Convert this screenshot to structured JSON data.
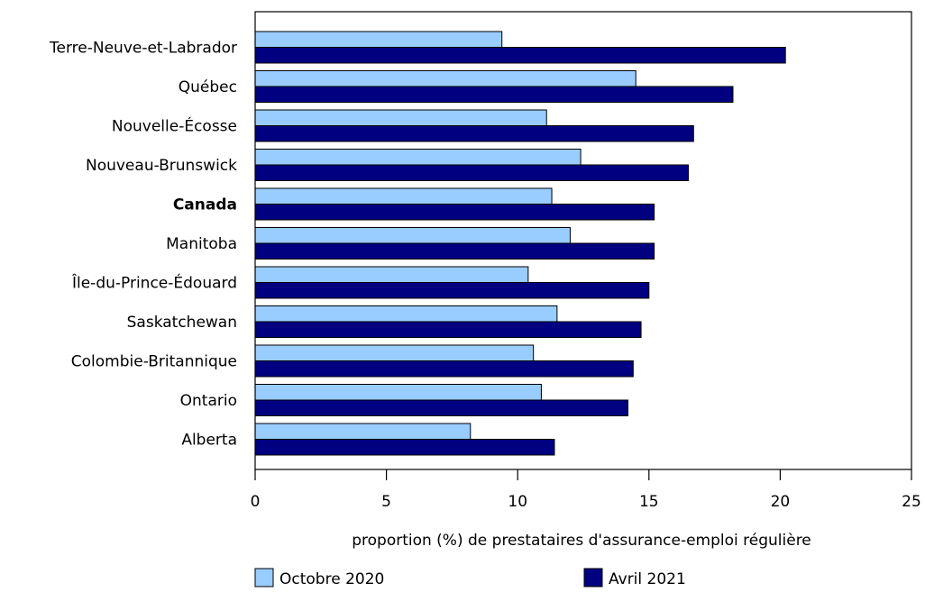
{
  "chart_data": {
    "type": "bar",
    "orientation": "horizontal",
    "categories": [
      "Terre-Neuve-et-Labrador",
      "Québec",
      "Nouvelle-Écosse",
      "Nouveau-Brunswick",
      "Canada",
      "Manitoba",
      "Île-du-Prince-Édouard",
      "Saskatchewan",
      "Colombie-Britannique",
      "Ontario",
      "Alberta"
    ],
    "bold_categories": [
      "Canada"
    ],
    "series": [
      {
        "name": "Octobre 2020",
        "color": "#99ccff",
        "values": [
          9.4,
          14.5,
          11.1,
          12.4,
          11.3,
          12.0,
          10.4,
          11.5,
          10.6,
          10.9,
          8.2
        ]
      },
      {
        "name": "Avril 2021",
        "color": "#000080",
        "values": [
          20.2,
          18.2,
          16.7,
          16.5,
          15.2,
          15.2,
          15.0,
          14.7,
          14.4,
          14.2,
          11.4
        ]
      }
    ],
    "xlabel": "proportion (%) de prestataires d'assurance-emploi régulière",
    "xlim": [
      0,
      25
    ],
    "xticks": [
      0,
      5,
      10,
      15,
      20,
      25
    ],
    "grid": false,
    "legend_position": "bottom"
  }
}
